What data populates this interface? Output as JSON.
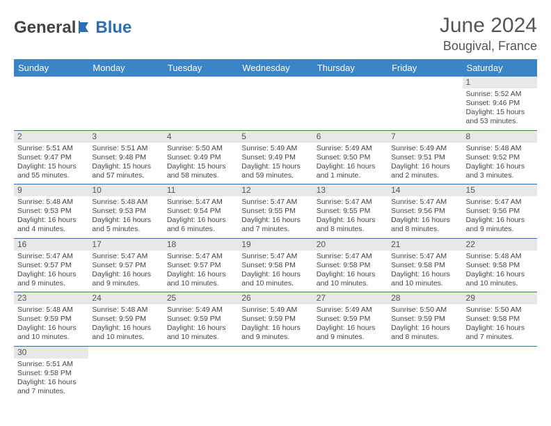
{
  "logo": {
    "part1": "General",
    "part2": "Blue"
  },
  "title": "June 2024",
  "location": "Bougival, France",
  "colors": {
    "header_bg": "#3b85c6",
    "header_fg": "#ffffff",
    "cell_border": "#2d6fb5",
    "daynum_bg": "#e8e8e8",
    "empty_bg": "#eeeeee",
    "logo_accent": "#2d6fb5",
    "text": "#444444"
  },
  "headers": [
    "Sunday",
    "Monday",
    "Tuesday",
    "Wednesday",
    "Thursday",
    "Friday",
    "Saturday"
  ],
  "weeks": [
    [
      null,
      null,
      null,
      null,
      null,
      null,
      {
        "d": "1",
        "sr": "5:52 AM",
        "ss": "9:46 PM",
        "dl": "15 hours and 53 minutes."
      }
    ],
    [
      {
        "d": "2",
        "sr": "5:51 AM",
        "ss": "9:47 PM",
        "dl": "15 hours and 55 minutes."
      },
      {
        "d": "3",
        "sr": "5:51 AM",
        "ss": "9:48 PM",
        "dl": "15 hours and 57 minutes."
      },
      {
        "d": "4",
        "sr": "5:50 AM",
        "ss": "9:49 PM",
        "dl": "15 hours and 58 minutes."
      },
      {
        "d": "5",
        "sr": "5:49 AM",
        "ss": "9:49 PM",
        "dl": "15 hours and 59 minutes."
      },
      {
        "d": "6",
        "sr": "5:49 AM",
        "ss": "9:50 PM",
        "dl": "16 hours and 1 minute."
      },
      {
        "d": "7",
        "sr": "5:49 AM",
        "ss": "9:51 PM",
        "dl": "16 hours and 2 minutes."
      },
      {
        "d": "8",
        "sr": "5:48 AM",
        "ss": "9:52 PM",
        "dl": "16 hours and 3 minutes."
      }
    ],
    [
      {
        "d": "9",
        "sr": "5:48 AM",
        "ss": "9:53 PM",
        "dl": "16 hours and 4 minutes."
      },
      {
        "d": "10",
        "sr": "5:48 AM",
        "ss": "9:53 PM",
        "dl": "16 hours and 5 minutes."
      },
      {
        "d": "11",
        "sr": "5:47 AM",
        "ss": "9:54 PM",
        "dl": "16 hours and 6 minutes."
      },
      {
        "d": "12",
        "sr": "5:47 AM",
        "ss": "9:55 PM",
        "dl": "16 hours and 7 minutes."
      },
      {
        "d": "13",
        "sr": "5:47 AM",
        "ss": "9:55 PM",
        "dl": "16 hours and 8 minutes."
      },
      {
        "d": "14",
        "sr": "5:47 AM",
        "ss": "9:56 PM",
        "dl": "16 hours and 8 minutes."
      },
      {
        "d": "15",
        "sr": "5:47 AM",
        "ss": "9:56 PM",
        "dl": "16 hours and 9 minutes."
      }
    ],
    [
      {
        "d": "16",
        "sr": "5:47 AM",
        "ss": "9:57 PM",
        "dl": "16 hours and 9 minutes."
      },
      {
        "d": "17",
        "sr": "5:47 AM",
        "ss": "9:57 PM",
        "dl": "16 hours and 9 minutes."
      },
      {
        "d": "18",
        "sr": "5:47 AM",
        "ss": "9:57 PM",
        "dl": "16 hours and 10 minutes."
      },
      {
        "d": "19",
        "sr": "5:47 AM",
        "ss": "9:58 PM",
        "dl": "16 hours and 10 minutes."
      },
      {
        "d": "20",
        "sr": "5:47 AM",
        "ss": "9:58 PM",
        "dl": "16 hours and 10 minutes."
      },
      {
        "d": "21",
        "sr": "5:47 AM",
        "ss": "9:58 PM",
        "dl": "16 hours and 10 minutes."
      },
      {
        "d": "22",
        "sr": "5:48 AM",
        "ss": "9:58 PM",
        "dl": "16 hours and 10 minutes."
      }
    ],
    [
      {
        "d": "23",
        "sr": "5:48 AM",
        "ss": "9:59 PM",
        "dl": "16 hours and 10 minutes."
      },
      {
        "d": "24",
        "sr": "5:48 AM",
        "ss": "9:59 PM",
        "dl": "16 hours and 10 minutes."
      },
      {
        "d": "25",
        "sr": "5:49 AM",
        "ss": "9:59 PM",
        "dl": "16 hours and 10 minutes."
      },
      {
        "d": "26",
        "sr": "5:49 AM",
        "ss": "9:59 PM",
        "dl": "16 hours and 9 minutes."
      },
      {
        "d": "27",
        "sr": "5:49 AM",
        "ss": "9:59 PM",
        "dl": "16 hours and 9 minutes."
      },
      {
        "d": "28",
        "sr": "5:50 AM",
        "ss": "9:59 PM",
        "dl": "16 hours and 8 minutes."
      },
      {
        "d": "29",
        "sr": "5:50 AM",
        "ss": "9:58 PM",
        "dl": "16 hours and 7 minutes."
      }
    ],
    [
      {
        "d": "30",
        "sr": "5:51 AM",
        "ss": "9:58 PM",
        "dl": "16 hours and 7 minutes."
      },
      null,
      null,
      null,
      null,
      null,
      null
    ]
  ],
  "labels": {
    "sunrise": "Sunrise: ",
    "sunset": "Sunset: ",
    "daylight": "Daylight: "
  }
}
